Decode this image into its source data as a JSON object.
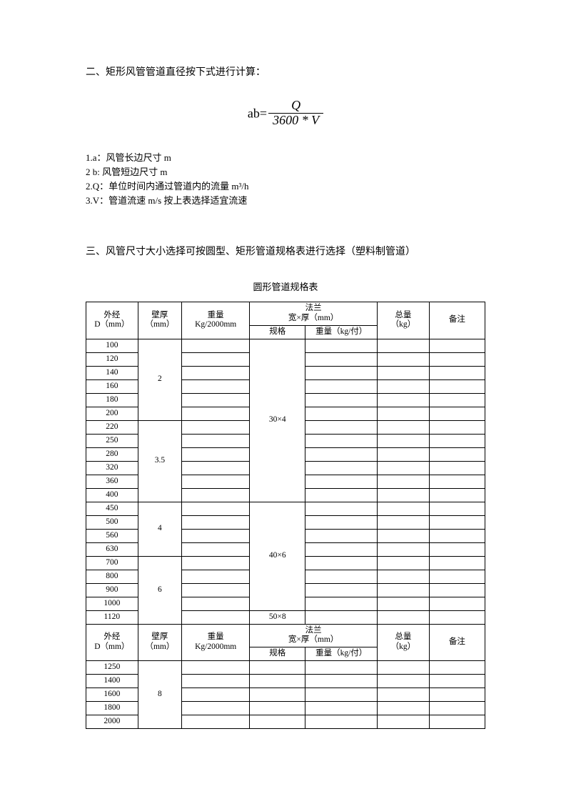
{
  "section2": {
    "title": "二、矩形风管管道直径按下式进行计算：",
    "formula": {
      "lhs": "ab=",
      "num": "Q",
      "den": "3600 * V"
    },
    "defs": [
      "1.a：风管长边尺寸 m",
      "2 b: 风管短边尺寸 m",
      "2.Q：单位时间内通过管道内的流量 m³/h",
      "3.V：管道流速 m/s 按上表选择适宜流速"
    ]
  },
  "section3": {
    "title": "三、风管尺寸大小选择可按圆型、矩形管道规格表进行选择（塑料制管道）",
    "tableTitle": "圆形管道规格表",
    "headers": {
      "diameter": "外经\nD（mm）",
      "thickness": "壁厚\n（mm）",
      "weight": "重量\nKg/2000mm",
      "flange": "法兰\n宽×厚（mm）",
      "spec": "规格",
      "unitWeight": "重量（kg/付）",
      "total": "总量\n（kg）",
      "note": "备注"
    },
    "groups1": [
      {
        "thickness": "2",
        "diameters": [
          "100",
          "120",
          "140",
          "160",
          "180",
          "200"
        ],
        "specGroup": {
          "value": "30×4",
          "rows": 12
        }
      },
      {
        "thickness": "3.5",
        "diameters": [
          "220",
          "250",
          "280",
          "320",
          "360",
          "400"
        ]
      },
      {
        "thickness": "4",
        "diameters": [
          "450",
          "500",
          "560",
          "630"
        ],
        "specGroup": {
          "value": "40×6",
          "rows": 8
        }
      },
      {
        "thickness": "6",
        "diameters": [
          "700",
          "800",
          "900",
          "1000"
        ]
      },
      {
        "thickness": "",
        "diameters": [
          "1120"
        ],
        "specGroup": {
          "value": "50×8",
          "rows": 1
        },
        "mergeThickness": true
      }
    ],
    "groups2": [
      {
        "thickness": "8",
        "diameters": [
          "1250",
          "1400",
          "1600",
          "1800",
          "2000"
        ]
      }
    ]
  }
}
